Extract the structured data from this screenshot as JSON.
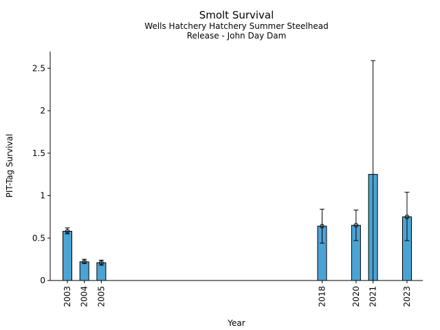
{
  "chart_data": {
    "type": "bar",
    "title": "Smolt Survival",
    "subtitle_lines": [
      "Wells Hatchery Hatchery Summer Steelhead",
      "Release - John Day Dam"
    ],
    "xlabel": "Year",
    "ylabel": "PIT-Tag Survival",
    "ylim": [
      0,
      2.72
    ],
    "yticks": [
      "0",
      "0.5",
      "1",
      "1.5",
      "2",
      "2.5"
    ],
    "grid": false,
    "bar_color": "#4ba3d3",
    "points": [
      {
        "year": 2003,
        "label": "2003",
        "value": 0.58,
        "err_low": 0.55,
        "err_high": 0.62,
        "marker": true
      },
      {
        "year": 2004,
        "label": "2004",
        "value": 0.22,
        "err_low": 0.2,
        "err_high": 0.25,
        "marker": true
      },
      {
        "year": 2005,
        "label": "2005",
        "value": 0.21,
        "err_low": 0.18,
        "err_high": 0.24,
        "marker": true
      },
      {
        "year": 2018,
        "label": "2018",
        "value": 0.64,
        "err_low": 0.44,
        "err_high": 0.84,
        "marker": true
      },
      {
        "year": 2020,
        "label": "2020",
        "value": 0.65,
        "err_low": 0.47,
        "err_high": 0.83,
        "marker": true
      },
      {
        "year": 2021,
        "label": "2021",
        "value": 1.25,
        "err_low": 0.0,
        "err_high": 2.59,
        "marker": false
      },
      {
        "year": 2023,
        "label": "2023",
        "value": 0.75,
        "err_low": 0.47,
        "err_high": 1.04,
        "marker": true
      }
    ]
  }
}
